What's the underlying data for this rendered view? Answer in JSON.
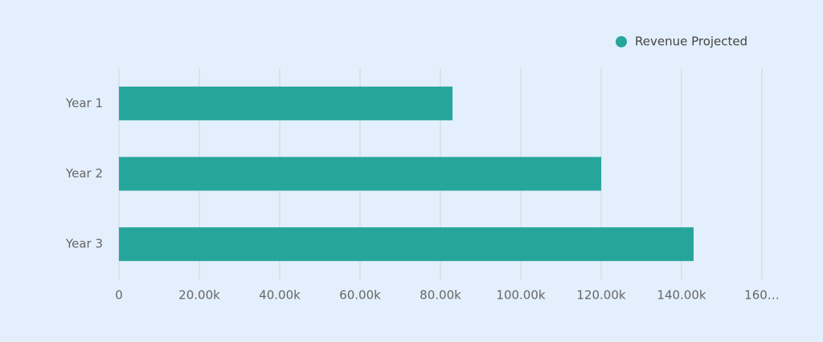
{
  "chart_data": {
    "type": "bar",
    "orientation": "horizontal",
    "categories": [
      "Year 1",
      "Year 2",
      "Year 3"
    ],
    "series": [
      {
        "name": "Revenue Projected",
        "color": "#26a69a",
        "values": [
          83000,
          120000,
          143000
        ]
      }
    ],
    "xlim": [
      0,
      160000
    ],
    "xticks": [
      0,
      {
        "value": 20000,
        "label": "20.00k"
      },
      {
        "value": 40000,
        "label": "40.00k"
      },
      {
        "value": 60000,
        "label": "60.00k"
      },
      {
        "value": 80000,
        "label": "80.00k"
      },
      {
        "value": 100000,
        "label": "100.00k"
      },
      {
        "value": 120000,
        "label": "120.00k"
      },
      {
        "value": 140000,
        "label": "140.00k"
      },
      {
        "value": 160000,
        "label": "160…"
      }
    ],
    "grid": true,
    "legend": "top-right"
  }
}
